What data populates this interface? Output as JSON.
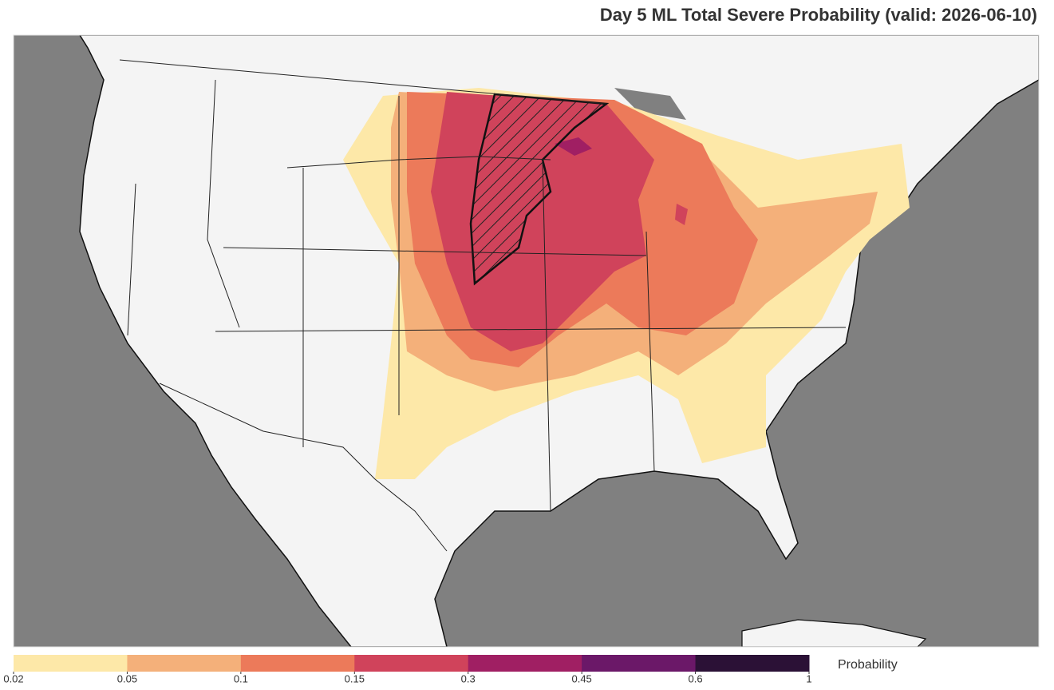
{
  "title": "Day 5 ML Total Severe Probability (valid: 2026-06-10)",
  "colorbar": {
    "label": "Probability",
    "ticks": [
      0.02,
      0.05,
      0.1,
      0.15,
      0.3,
      0.45,
      0.6,
      1
    ],
    "colors": [
      "#fde8a8",
      "#f4b07a",
      "#ec7a5a",
      "#d0435b",
      "#a01f63",
      "#6b1868",
      "#2b1136"
    ]
  }
}
